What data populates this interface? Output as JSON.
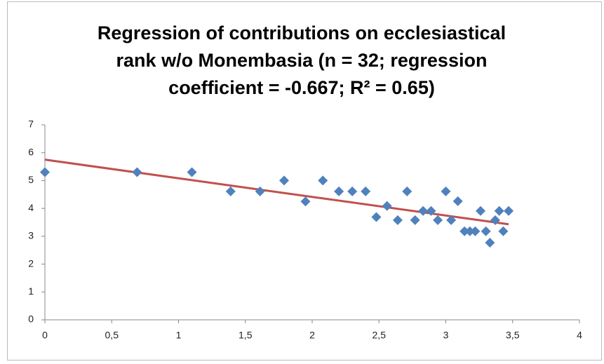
{
  "chart_data": {
    "type": "scatter",
    "title": "Regression of contributions on ecclesiastical rank w/o Monembasia (n = 32; regression coefficient = -0.667; R² = 0.65)",
    "color": "#4f81bd",
    "x": [
      0,
      0.69,
      1.1,
      1.39,
      1.61,
      1.79,
      1.95,
      2.08,
      2.2,
      2.3,
      2.4,
      2.48,
      2.56,
      2.64,
      2.71,
      2.77,
      2.83,
      2.89,
      2.94,
      3.0,
      3.04,
      3.09,
      3.14,
      3.18,
      3.22,
      3.26,
      3.3,
      3.33,
      3.37,
      3.4,
      3.43,
      3.47
    ],
    "values": [
      5.3,
      5.3,
      5.3,
      4.61,
      4.61,
      5.0,
      4.25,
      5.0,
      4.61,
      4.61,
      4.61,
      3.69,
      4.09,
      3.58,
      4.61,
      3.58,
      3.91,
      3.91,
      3.58,
      4.61,
      3.58,
      4.26,
      3.18,
      3.18,
      3.18,
      3.91,
      3.18,
      2.77,
      3.58,
      3.91,
      3.18,
      3.91
    ],
    "trendline": {
      "color": "#c0504d",
      "x": [
        0,
        3.47
      ],
      "values": [
        5.75,
        3.43
      ]
    },
    "xlim": [
      0,
      4
    ],
    "xticks": [
      0,
      {
        "value": 0.5,
        "label": "0,5"
      },
      1,
      {
        "value": 1.5,
        "label": "1,5"
      },
      2,
      {
        "value": 2.5,
        "label": "2,5"
      },
      3,
      {
        "value": 3.5,
        "label": "3,5"
      },
      4
    ],
    "ylim": [
      0,
      7
    ],
    "yticks": [
      0,
      1,
      2,
      3,
      4,
      5,
      6,
      7
    ]
  }
}
